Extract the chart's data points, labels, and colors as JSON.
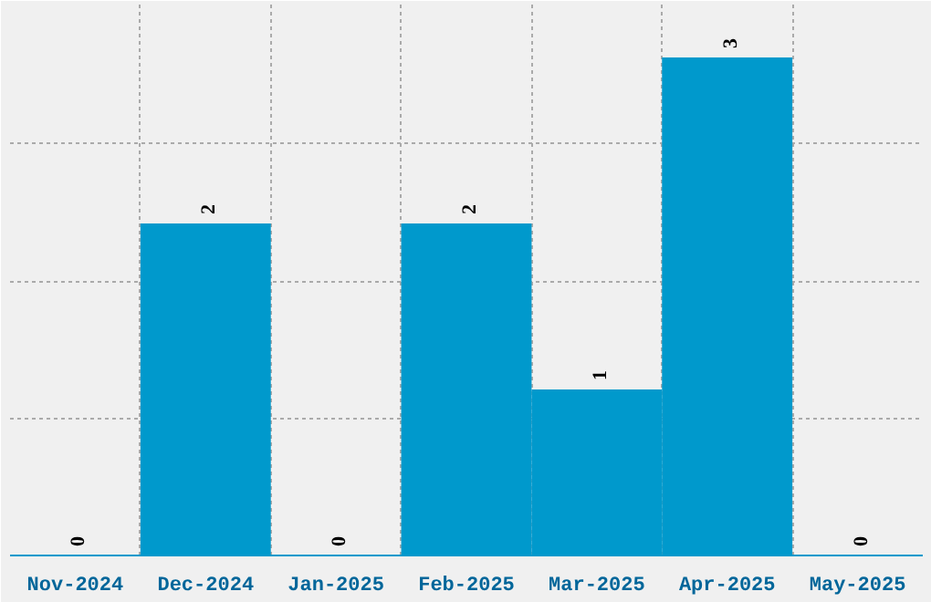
{
  "chart_data": {
    "type": "bar",
    "categories": [
      "Nov-2024",
      "Dec-2024",
      "Jan-2025",
      "Feb-2025",
      "Mar-2025",
      "Apr-2025",
      "May-2025"
    ],
    "values": [
      0,
      2,
      0,
      2,
      1,
      3,
      0
    ],
    "color": "#0099cc",
    "ylim": [
      0,
      3.34
    ],
    "yticks": [
      {
        "value": 0,
        "label": null
      },
      {
        "value": 0.825,
        "label": null
      },
      {
        "value": 1.65,
        "label": null
      },
      {
        "value": 2.48,
        "label": null
      }
    ],
    "tick_labels": "x",
    "data_labels": true,
    "grid": true
  }
}
